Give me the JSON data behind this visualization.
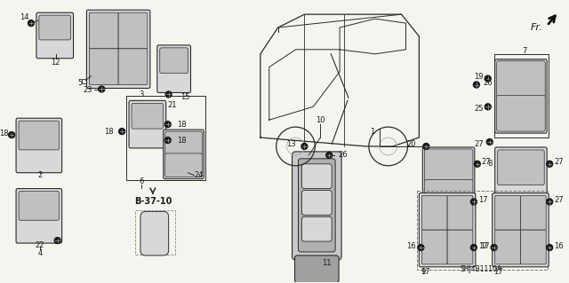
{
  "bg_color": "#f5f5f0",
  "line_color": "#2a2a2a",
  "part_number_label": "SHJ4B1110A",
  "fr_label": "Fr.",
  "ref_label": "B-37-10",
  "figsize": [
    6.4,
    3.19
  ],
  "dpi": 100,
  "switch_face": "#d8d8d8",
  "switch_body": "#c0c0c0",
  "switch_dark": "#888888",
  "screw_color": "#1a1a1a",
  "bracket_color": "#555555",
  "van_color": "#2a2a2a"
}
